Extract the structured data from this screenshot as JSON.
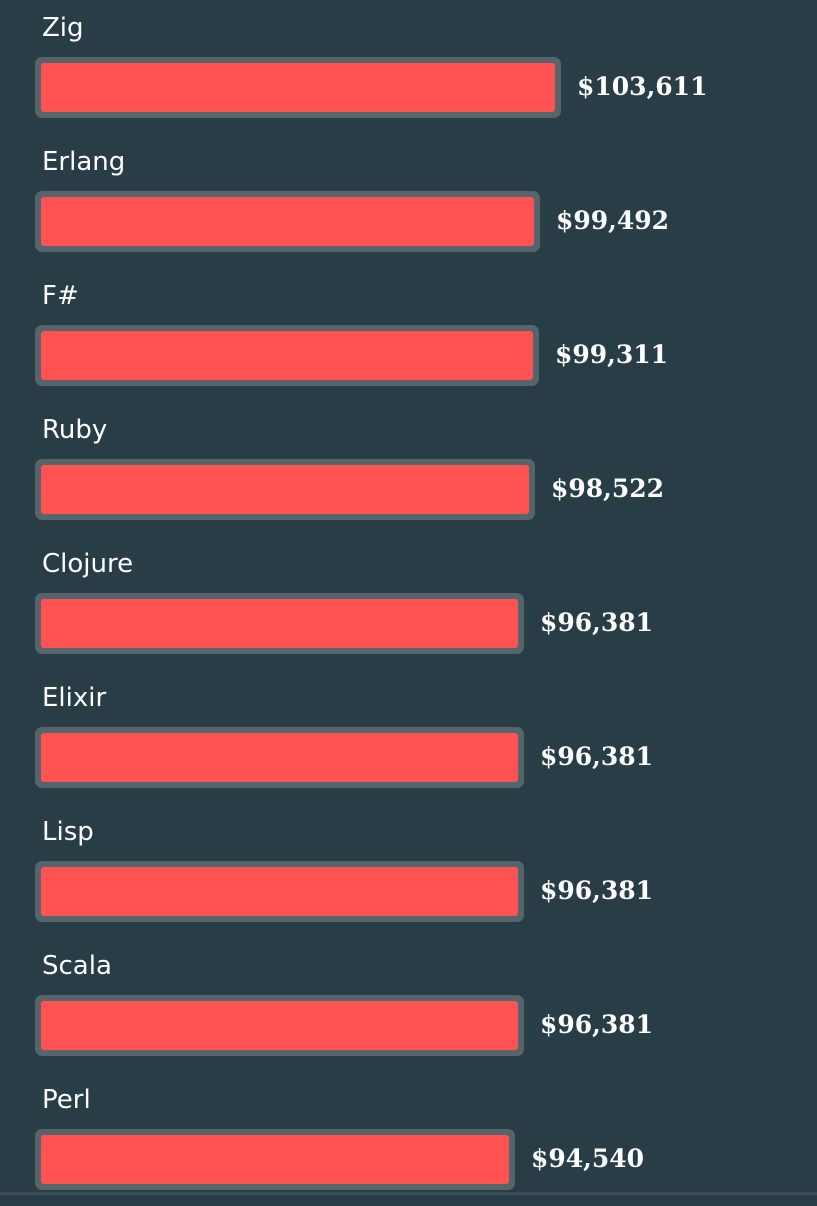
{
  "chart_data": {
    "type": "bar",
    "orientation": "horizontal",
    "categories": [
      "Zig",
      "Erlang",
      "F#",
      "Ruby",
      "Clojure",
      "Elixir",
      "Lisp",
      "Scala",
      "Perl"
    ],
    "values": [
      103611,
      99492,
      99311,
      98522,
      96381,
      96381,
      96381,
      96381,
      94540
    ],
    "value_labels": [
      "$103,611",
      "$99,492",
      "$99,311",
      "$98,522",
      "$96,381",
      "$96,381",
      "$96,381",
      "$96,381",
      "$94,540"
    ],
    "title": "",
    "xlabel": "",
    "ylabel": "",
    "grid": false,
    "legend": "none"
  },
  "colors": {
    "background": "#283d45",
    "bar": "#ff5252",
    "bar_border": "#56646b",
    "text": "#ffffff"
  }
}
